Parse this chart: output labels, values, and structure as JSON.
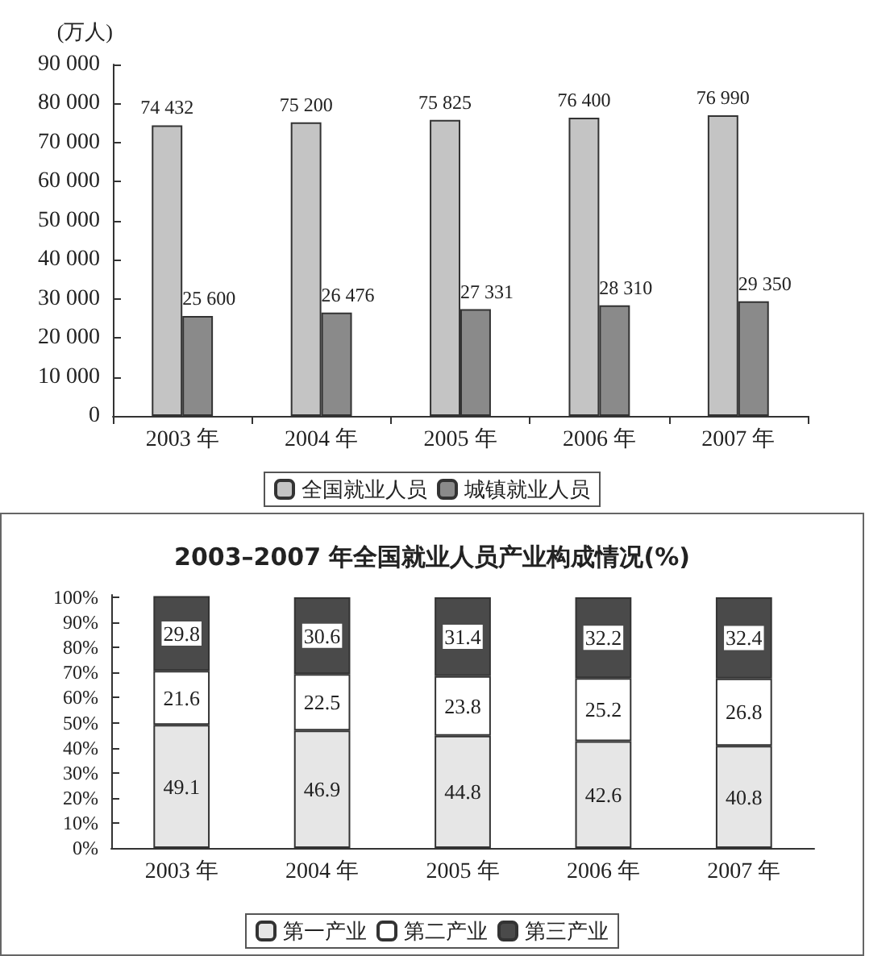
{
  "chart_data": [
    {
      "type": "bar",
      "ylabel": "(万人)",
      "categories": [
        "2003 年",
        "2004 年",
        "2005 年",
        "2006 年",
        "2007 年"
      ],
      "series": [
        {
          "name": "全国就业人员",
          "color": "#c4c4c4",
          "values": [
            74432,
            75200,
            75825,
            76400,
            76990
          ],
          "value_labels": [
            "74 432",
            "75 200",
            "75 825",
            "76 400",
            "76 990"
          ]
        },
        {
          "name": "城镇就业人员",
          "color": "#8a8a8a",
          "values": [
            25600,
            26476,
            27331,
            28310,
            29350
          ],
          "value_labels": [
            "25 600",
            "26 476",
            "27 331",
            "28 310",
            "29 350"
          ]
        }
      ],
      "ylim": [
        0,
        90000
      ],
      "yticks": [
        0,
        {
          "value": 10000,
          "label": "10 000"
        },
        {
          "value": 20000,
          "label": "20 000"
        },
        {
          "value": 30000,
          "label": "30 000"
        },
        {
          "value": 40000,
          "label": "40 000"
        },
        {
          "value": 50000,
          "label": "50 000"
        },
        {
          "value": 60000,
          "label": "60 000"
        },
        {
          "value": 70000,
          "label": "70 000"
        },
        {
          "value": 80000,
          "label": "80 000"
        },
        {
          "value": 90000,
          "label": "90 000"
        }
      ],
      "legend": "bottom"
    },
    {
      "type": "bar",
      "title": "2003–2007 年全国就业人员产业构成情况(%)",
      "categories": [
        "2003 年",
        "2004 年",
        "2005 年",
        "2006 年",
        "2007 年"
      ],
      "stacked": true,
      "series": [
        {
          "name": "第一产业",
          "color": "#e6e6e6",
          "values": [
            49.1,
            46.9,
            44.8,
            42.6,
            40.8
          ]
        },
        {
          "name": "第二产业",
          "color": "#ffffff",
          "values": [
            21.6,
            22.5,
            23.8,
            25.2,
            26.8
          ]
        },
        {
          "name": "第三产业",
          "color": "#4a4a4a",
          "values": [
            29.8,
            30.6,
            31.4,
            32.2,
            32.4
          ]
        }
      ],
      "ylim": [
        0,
        101
      ],
      "yticks": [
        {
          "value": 0,
          "label": "0%"
        },
        {
          "value": 10,
          "label": "10%"
        },
        {
          "value": 20,
          "label": "20%"
        },
        {
          "value": 30,
          "label": "30%"
        },
        {
          "value": 40,
          "label": "40%"
        },
        {
          "value": 50,
          "label": "50%"
        },
        {
          "value": 60,
          "label": "60%"
        },
        {
          "value": 70,
          "label": "70%"
        },
        {
          "value": 80,
          "label": "80%"
        },
        {
          "value": 90,
          "label": "90%"
        },
        {
          "value": 100,
          "label": "100%"
        }
      ],
      "data_labels": true,
      "legend": "bottom"
    }
  ]
}
